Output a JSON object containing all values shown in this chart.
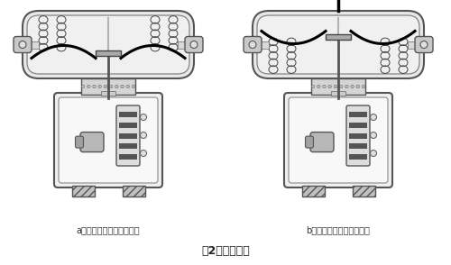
{
  "title": "图2、执行机构",
  "label_a": "a、反作用与阀构成气开式",
  "label_b": "b、正作用与阀构成气关式",
  "bg_color": "#ffffff",
  "line_color": "#444444",
  "title_fontsize": 9,
  "label_fontsize": 7
}
